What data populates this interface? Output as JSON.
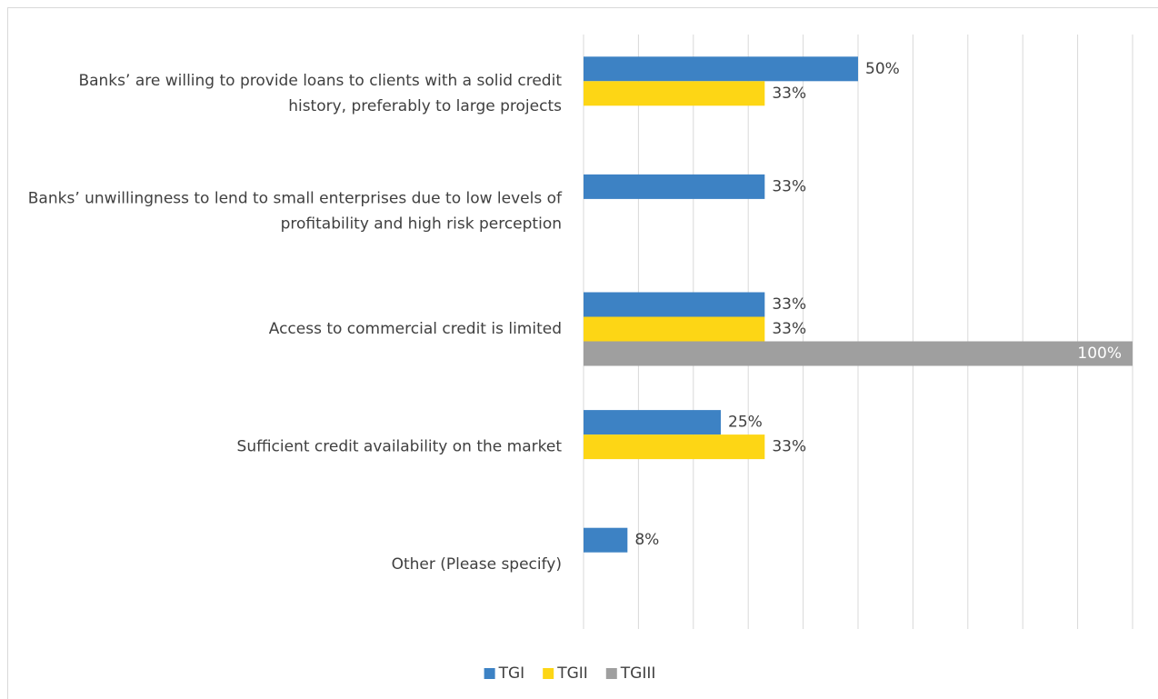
{
  "chart_data": {
    "type": "hbar",
    "categories": [
      "Banks’ are willing to provide loans to clients with a solid credit history, preferably to large projects",
      "Banks’ unwillingness to lend to small enterprises due to low levels of profitability and high risk perception",
      "Access to commercial credit is limited",
      "Sufficient credit availability on the market",
      "Other (Please specify)"
    ],
    "series": [
      {
        "name": "TGI",
        "color": "#3d82c4",
        "values": [
          50,
          33,
          33,
          25,
          8
        ],
        "value_labels": [
          "50%",
          "33%",
          "33%",
          "25%",
          "8%"
        ]
      },
      {
        "name": "TGII",
        "color": "#fdd615",
        "values": [
          33,
          null,
          33,
          33,
          null
        ],
        "value_labels": [
          "33%",
          null,
          "33%",
          "33%",
          null
        ]
      },
      {
        "name": "TGIII",
        "color": "#9f9f9f",
        "values": [
          null,
          null,
          100,
          null,
          null
        ],
        "value_labels": [
          null,
          null,
          "100%",
          null,
          null
        ]
      }
    ],
    "xlim": [
      0,
      100
    ],
    "xticks": [
      0,
      10,
      20,
      30,
      40,
      50,
      60,
      70,
      80,
      90,
      100
    ],
    "grid": true,
    "legend": "bottom"
  }
}
